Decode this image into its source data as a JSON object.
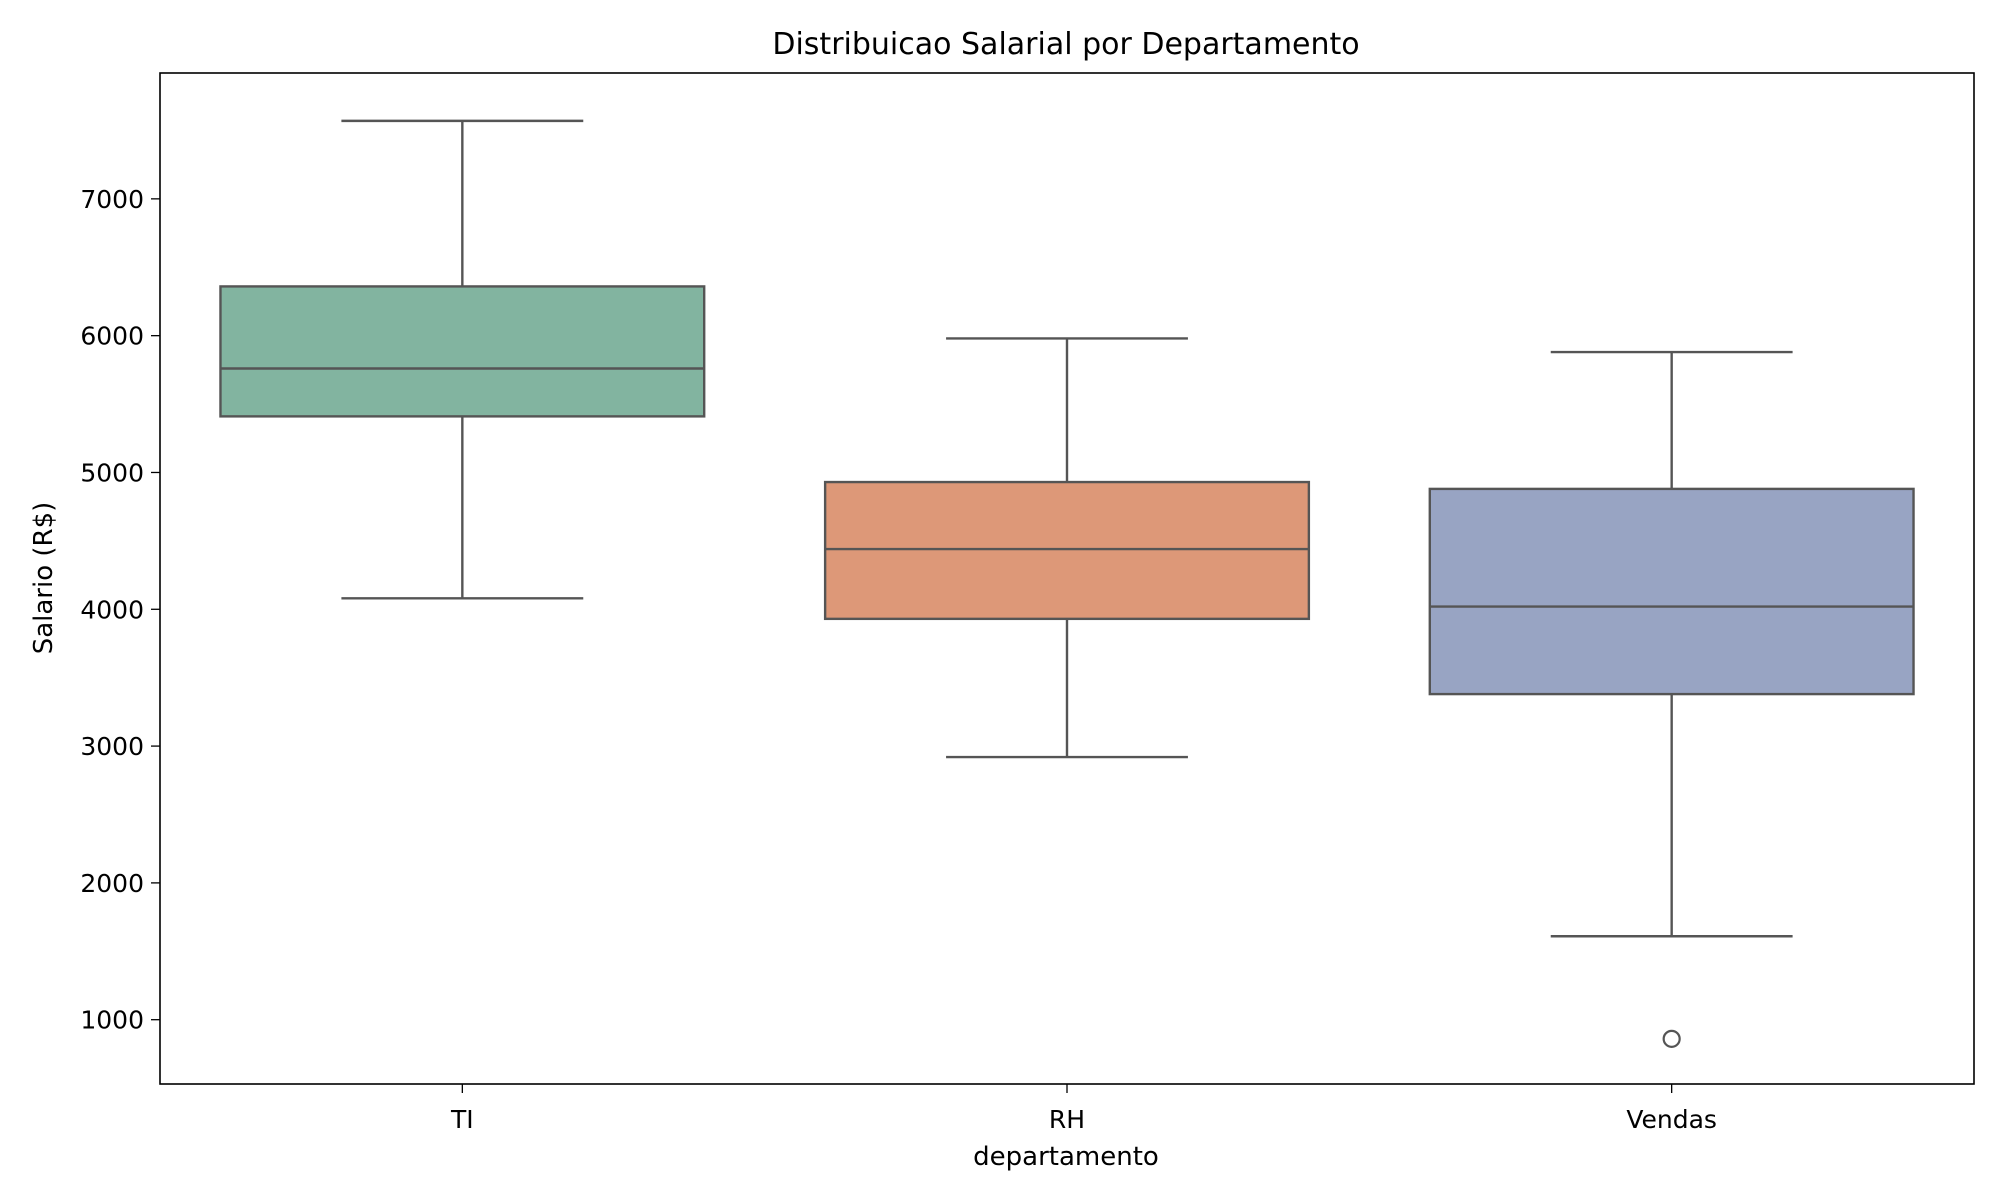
{
  "chart_data": {
    "type": "box",
    "title": "Distribuicao Salarial por Departamento",
    "xlabel": "departamento",
    "ylabel": "Salario (R$)",
    "categories": [
      "TI",
      "RH",
      "Vendas"
    ],
    "colors": [
      "#82b4a0",
      "#dd9878",
      "#98a4c3"
    ],
    "ylim": [
      530,
      7920
    ],
    "yticks": [
      1000,
      2000,
      3000,
      4000,
      5000,
      6000,
      7000
    ],
    "boxes": [
      {
        "category": "TI",
        "whisker_low": 4080,
        "q1": 5410,
        "median": 5760,
        "q3": 6360,
        "whisker_high": 7570,
        "outliers": []
      },
      {
        "category": "RH",
        "whisker_low": 2920,
        "q1": 3930,
        "median": 4440,
        "q3": 4930,
        "whisker_high": 5980,
        "outliers": []
      },
      {
        "category": "Vendas",
        "whisker_low": 1610,
        "q1": 3380,
        "median": 4020,
        "q3": 4880,
        "whisker_high": 5880,
        "outliers": [
          860
        ]
      }
    ],
    "grid": false,
    "legend": "none"
  }
}
